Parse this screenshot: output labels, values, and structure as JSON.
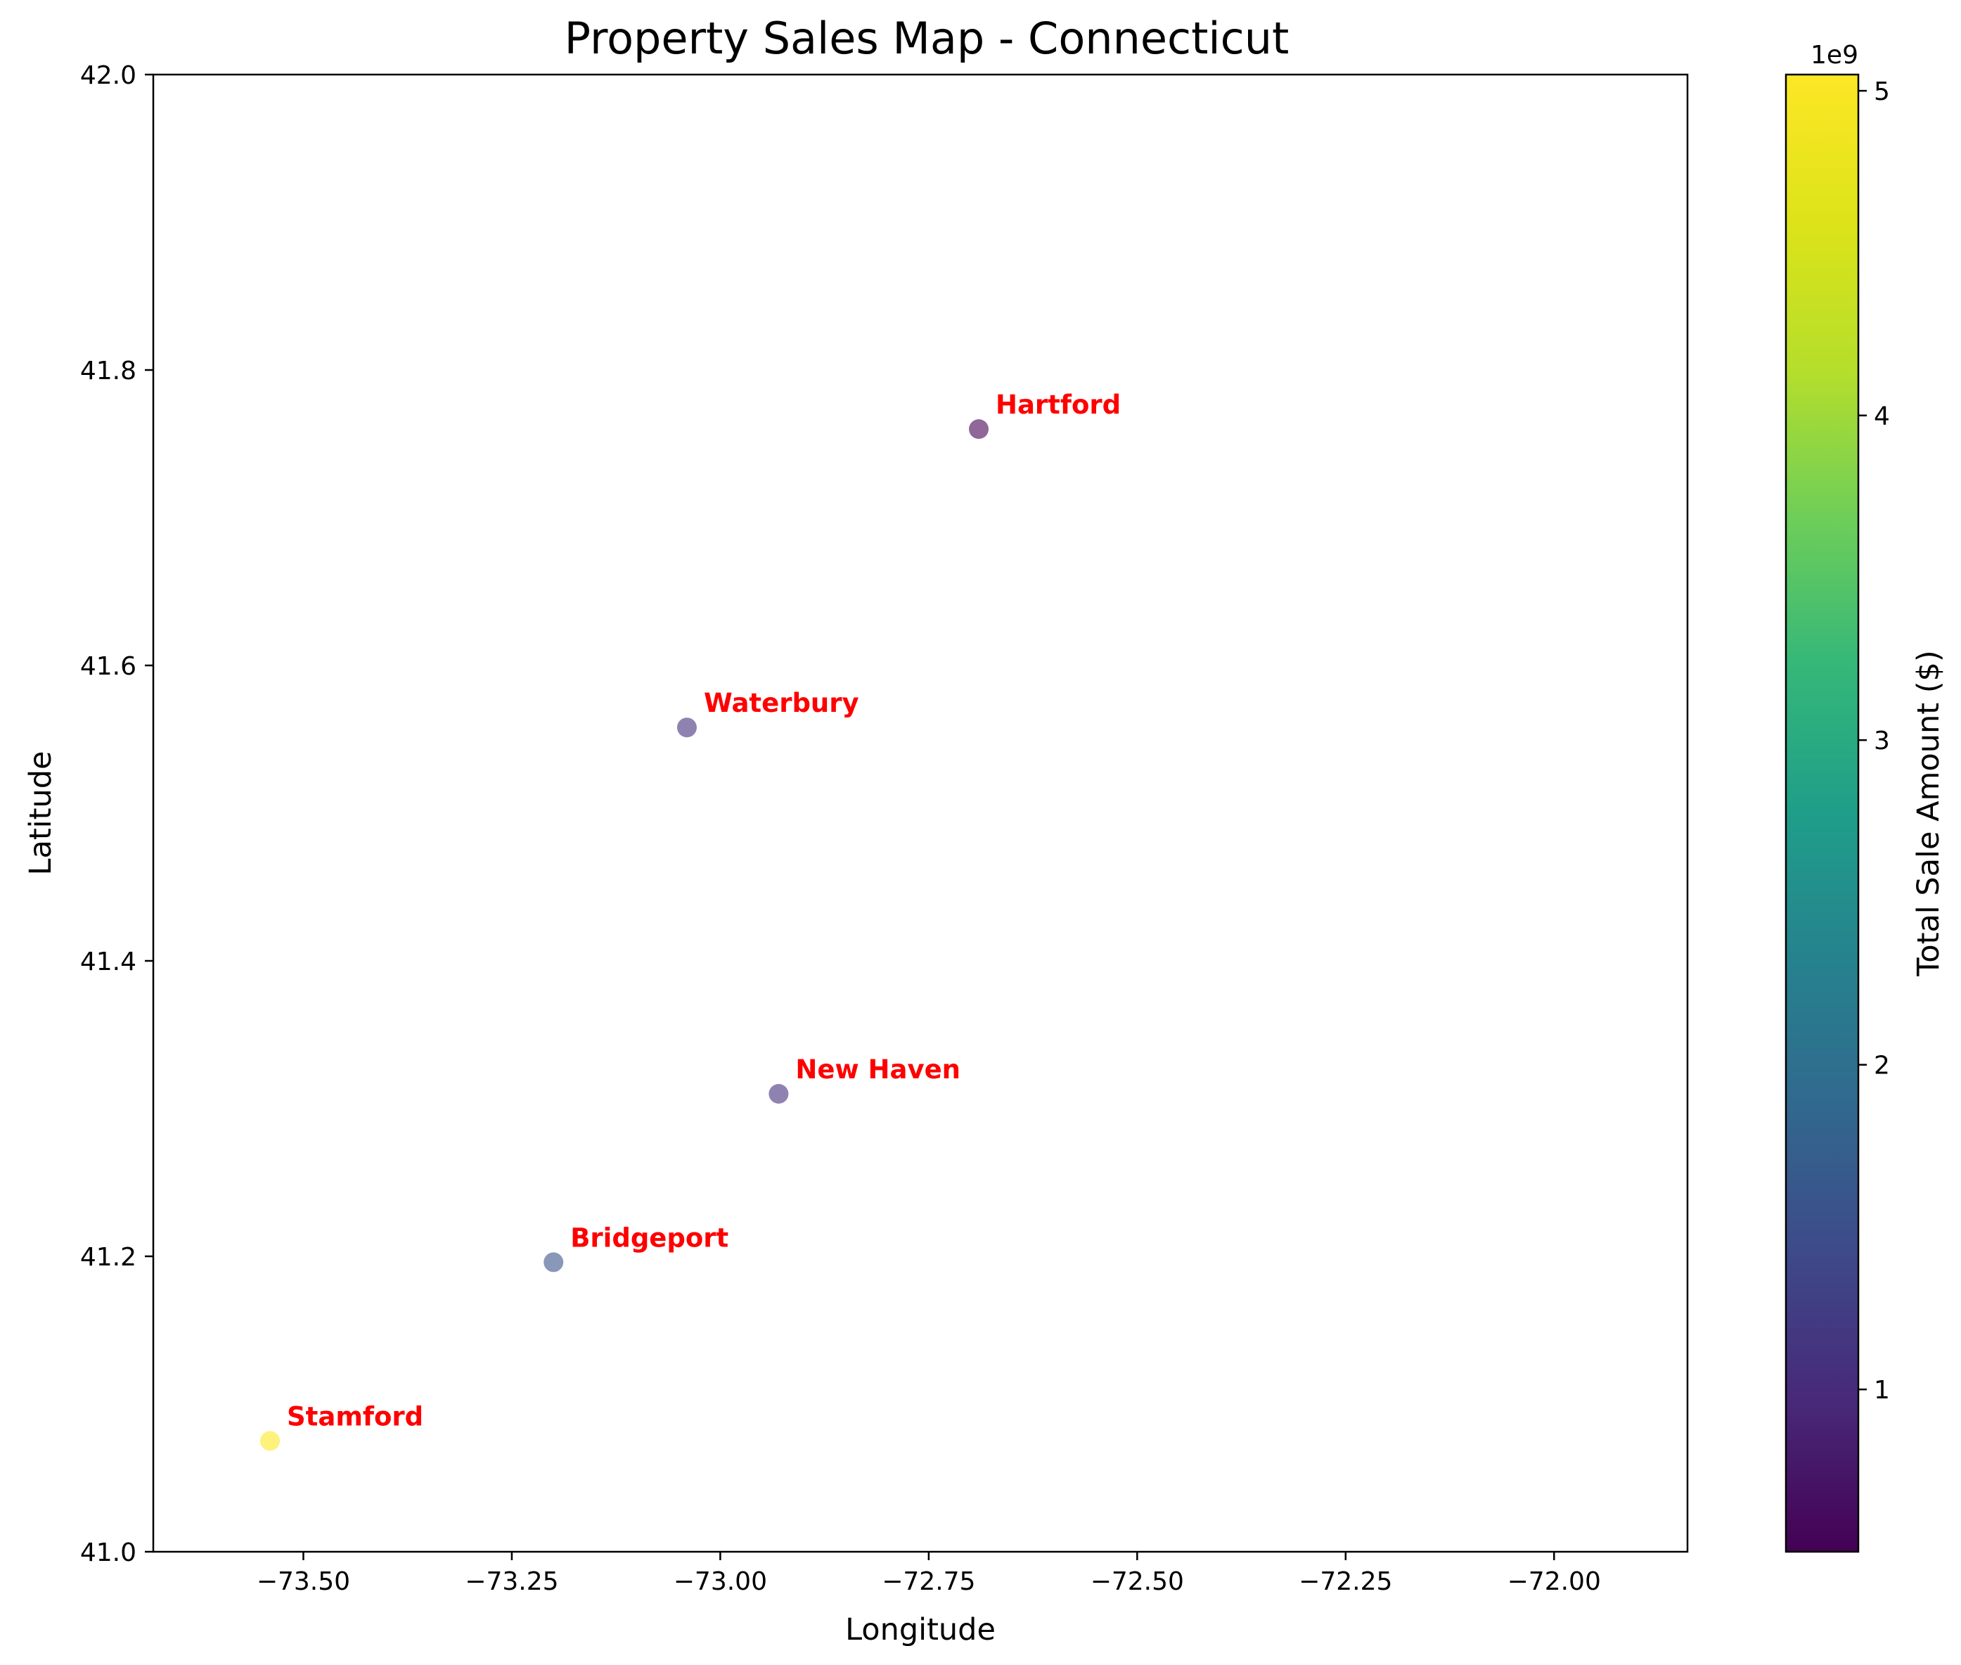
{
  "chart_data": {
    "type": "scatter",
    "title": "Property Sales Map - Connecticut",
    "xlabel": "Longitude",
    "ylabel": "Latitude",
    "xlim": [
      -73.68,
      -71.84
    ],
    "ylim": [
      41.0,
      42.0
    ],
    "x_ticks": [
      -73.5,
      -73.25,
      -73.0,
      -72.75,
      -72.5,
      -72.25,
      -72.0
    ],
    "x_tick_labels": [
      "−73.50",
      "−73.25",
      "−73.00",
      "−72.75",
      "−72.50",
      "−72.25",
      "−72.00"
    ],
    "y_ticks": [
      41.0,
      41.2,
      41.4,
      41.6,
      41.8,
      42.0
    ],
    "y_tick_labels": [
      "41.0",
      "41.2",
      "41.4",
      "41.6",
      "41.8",
      "42.0"
    ],
    "grid": false,
    "points": [
      {
        "label": "Hartford",
        "x": -72.69,
        "y": 41.76,
        "value": 500000000
      },
      {
        "label": "Waterbury",
        "x": -73.04,
        "y": 41.558,
        "value": 1050000000
      },
      {
        "label": "New Haven",
        "x": -72.93,
        "y": 41.31,
        "value": 1050000000
      },
      {
        "label": "Bridgeport",
        "x": -73.2,
        "y": 41.196,
        "value": 1550000000
      },
      {
        "label": "Stamford",
        "x": -73.54,
        "y": 41.075,
        "value": 5050000000
      }
    ],
    "colorbar": {
      "label": "Total Sale Amount ($)",
      "colormap": "viridis",
      "alpha": 0.6,
      "min": 500000000,
      "max": 5050000000,
      "ticks": [
        1000000000,
        2000000000,
        3000000000,
        4000000000,
        5000000000
      ],
      "tick_labels": [
        "1",
        "2",
        "3",
        "4",
        "5"
      ],
      "offset_text": "1e9"
    },
    "label_color": "#ff0000",
    "marker_alpha": 0.6
  }
}
